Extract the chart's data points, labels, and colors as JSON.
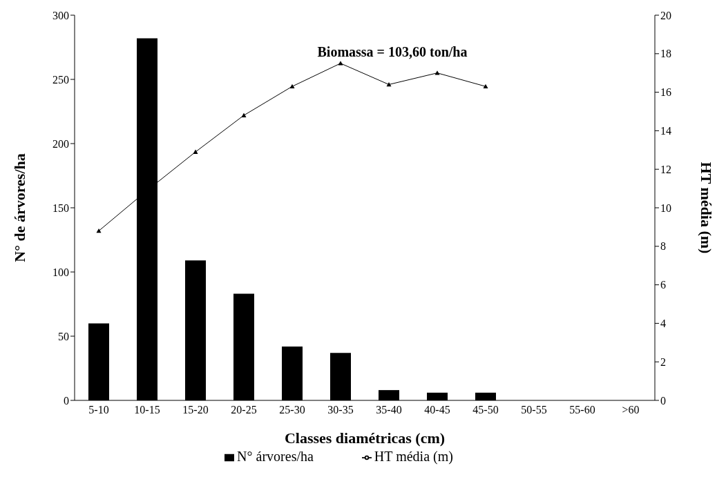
{
  "chart_data": {
    "type": "bar",
    "xlabel": "Classes diamétricas (cm)",
    "ylabel": "N° de árvores/ha",
    "y2label": "HT média (m)",
    "categories": [
      "5-10",
      "10-15",
      "15-20",
      "20-25",
      "25-30",
      "30-35",
      "35-40",
      "40-45",
      "45-50",
      "50-55",
      "55-60",
      ">60"
    ],
    "series": [
      {
        "name": "N° árvores/ha",
        "color": "#000000",
        "values": [
          60,
          282,
          109,
          83,
          42,
          37,
          8,
          6,
          6,
          0,
          0,
          0
        ]
      },
      {
        "name": "HT média (m)",
        "type": "line",
        "axis": "y2",
        "color": "#000000",
        "marker": "triangle",
        "values": [
          8.8,
          10.9,
          12.9,
          14.8,
          16.3,
          17.5,
          16.4,
          17.0,
          16.3,
          null,
          null,
          null
        ]
      }
    ],
    "ylim": [
      0,
      300
    ],
    "yticks": [
      0,
      50,
      100,
      150,
      200,
      250,
      300
    ],
    "y2lim": [
      0,
      20
    ],
    "y2ticks": [
      0,
      2,
      4,
      6,
      8,
      10,
      12,
      14,
      16,
      18,
      20
    ],
    "annotations": [
      "Biomassa = 103,60 ton/ha"
    ],
    "legend": "bottom"
  }
}
